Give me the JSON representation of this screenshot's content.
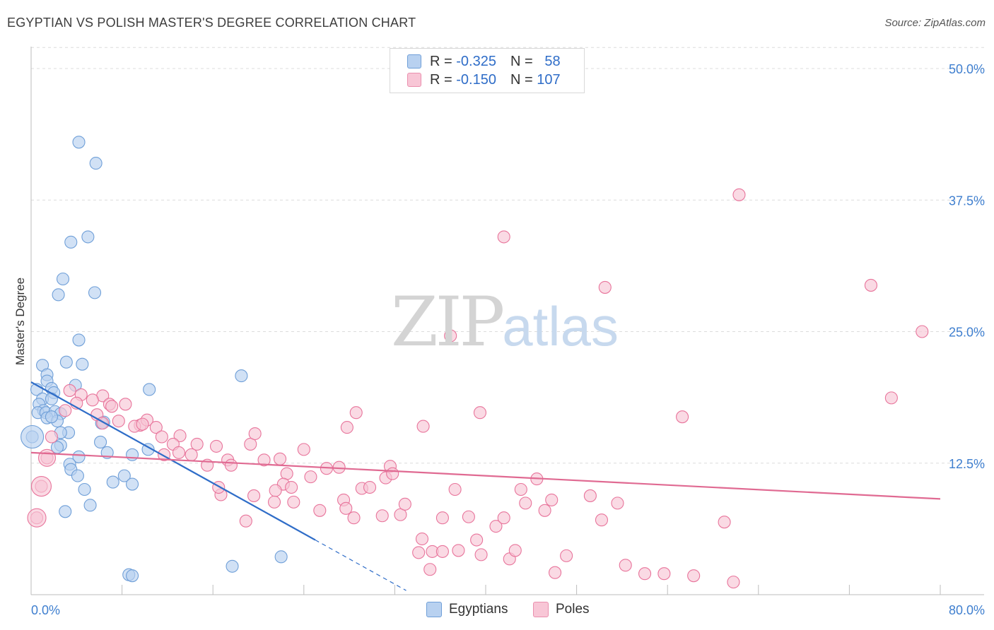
{
  "title": "EGYPTIAN VS POLISH MASTER'S DEGREE CORRELATION CHART",
  "source": "Source: ZipAtlas.com",
  "watermark": {
    "zip": "ZIP",
    "atlas": "atlas"
  },
  "legend": {
    "r_label": "R =",
    "n_label": "N =",
    "rows": [
      {
        "r": "-0.325",
        "n": "58",
        "fill": "#b8d1f0",
        "stroke": "#6f9fd8"
      },
      {
        "r": "-0.150",
        "n": "107",
        "fill": "#f8c6d6",
        "stroke": "#ea8fae"
      }
    ]
  },
  "bottom_legend": [
    {
      "label": "Egyptians",
      "fill": "#b8d1f0",
      "stroke": "#6f9fd8"
    },
    {
      "label": "Poles",
      "fill": "#f8c6d6",
      "stroke": "#ea8fae"
    }
  ],
  "chart_data": {
    "type": "scatter",
    "title": "EGYPTIAN VS POLISH MASTER'S DEGREE CORRELATION CHART",
    "ylabel": "Master's Degree",
    "xlabel": "",
    "xlim": [
      0,
      80
    ],
    "ylim": [
      0,
      52
    ],
    "x_tick_labels": [
      "0.0%",
      "80.0%"
    ],
    "y_ticks": [
      12.5,
      25.0,
      37.5,
      50.0
    ],
    "y_tick_labels": [
      "12.5%",
      "25.0%",
      "37.5%",
      "50.0%"
    ],
    "grid": true,
    "series": [
      {
        "name": "Egyptians",
        "color": "#6f9fd8",
        "fill": "#b8d1f0",
        "trend": {
          "x0": 0,
          "y0": 20.2,
          "x1": 25,
          "y1": 5.2,
          "dash_to_x": 33
        },
        "points": [
          [
            4.2,
            43.0
          ],
          [
            5.7,
            41.0
          ],
          [
            3.5,
            33.5
          ],
          [
            5.0,
            34.0
          ],
          [
            2.8,
            30.0
          ],
          [
            2.4,
            28.5
          ],
          [
            5.6,
            28.7
          ],
          [
            4.2,
            24.2
          ],
          [
            1.0,
            21.8
          ],
          [
            3.1,
            22.1
          ],
          [
            4.5,
            21.9
          ],
          [
            1.4,
            20.9
          ],
          [
            1.4,
            20.3
          ],
          [
            1.8,
            19.6
          ],
          [
            0.5,
            19.5
          ],
          [
            1.0,
            18.6
          ],
          [
            3.9,
            19.9
          ],
          [
            2.0,
            19.2
          ],
          [
            1.8,
            18.6
          ],
          [
            0.7,
            18.1
          ],
          [
            1.1,
            17.5
          ],
          [
            0.6,
            17.3
          ],
          [
            1.3,
            17.3
          ],
          [
            2.1,
            17.4
          ],
          [
            2.6,
            17.2
          ],
          [
            1.4,
            16.8
          ],
          [
            2.3,
            16.5
          ],
          [
            1.8,
            16.9
          ],
          [
            3.3,
            15.4
          ],
          [
            2.6,
            15.4
          ],
          [
            6.4,
            16.4
          ],
          [
            6.2,
            16.3
          ],
          [
            0.1,
            15.0
          ],
          [
            6.1,
            14.5
          ],
          [
            2.6,
            14.2
          ],
          [
            2.3,
            14.0
          ],
          [
            6.7,
            13.5
          ],
          [
            4.2,
            13.1
          ],
          [
            8.9,
            13.3
          ],
          [
            10.3,
            13.8
          ],
          [
            3.4,
            12.4
          ],
          [
            3.5,
            11.9
          ],
          [
            4.1,
            11.3
          ],
          [
            8.2,
            11.3
          ],
          [
            7.2,
            10.7
          ],
          [
            8.9,
            10.5
          ],
          [
            4.7,
            10.0
          ],
          [
            5.2,
            8.5
          ],
          [
            3.0,
            7.9
          ],
          [
            10.4,
            19.5
          ],
          [
            18.5,
            20.8
          ],
          [
            8.6,
            1.9
          ],
          [
            8.9,
            1.8
          ],
          [
            17.7,
            2.7
          ],
          [
            22.0,
            3.6
          ]
        ]
      },
      {
        "name": "Poles",
        "color": "#e8749b",
        "fill": "#f8c6d6",
        "trend": {
          "x0": 0,
          "y0": 13.5,
          "x1": 80,
          "y1": 9.1
        },
        "points": [
          [
            62.3,
            38.0
          ],
          [
            41.6,
            34.0
          ],
          [
            50.5,
            29.2
          ],
          [
            73.9,
            29.4
          ],
          [
            78.4,
            25.0
          ],
          [
            36.9,
            24.6
          ],
          [
            75.7,
            18.7
          ],
          [
            3.4,
            19.4
          ],
          [
            4.4,
            19.0
          ],
          [
            6.3,
            18.9
          ],
          [
            4.0,
            18.2
          ],
          [
            5.4,
            18.5
          ],
          [
            3.0,
            17.5
          ],
          [
            6.9,
            18.1
          ],
          [
            7.1,
            17.9
          ],
          [
            8.3,
            18.1
          ],
          [
            5.8,
            17.1
          ],
          [
            7.7,
            16.5
          ],
          [
            6.3,
            16.3
          ],
          [
            9.6,
            16.1
          ],
          [
            9.1,
            16.0
          ],
          [
            10.2,
            16.6
          ],
          [
            9.8,
            16.2
          ],
          [
            11.0,
            15.9
          ],
          [
            11.5,
            15.0
          ],
          [
            13.1,
            15.1
          ],
          [
            14.6,
            14.3
          ],
          [
            12.5,
            14.3
          ],
          [
            11.7,
            13.3
          ],
          [
            13.0,
            13.5
          ],
          [
            14.1,
            13.3
          ],
          [
            16.3,
            14.1
          ],
          [
            17.3,
            12.8
          ],
          [
            15.5,
            12.3
          ],
          [
            17.6,
            12.3
          ],
          [
            19.3,
            14.3
          ],
          [
            19.7,
            15.3
          ],
          [
            20.5,
            12.8
          ],
          [
            21.9,
            12.9
          ],
          [
            22.5,
            11.5
          ],
          [
            24.0,
            13.8
          ],
          [
            26.0,
            12.0
          ],
          [
            24.6,
            11.2
          ],
          [
            27.1,
            12.1
          ],
          [
            22.2,
            10.5
          ],
          [
            21.5,
            9.9
          ],
          [
            22.9,
            10.2
          ],
          [
            19.6,
            9.4
          ],
          [
            16.7,
            9.5
          ],
          [
            16.5,
            10.2
          ],
          [
            18.9,
            7.0
          ],
          [
            21.4,
            8.8
          ],
          [
            23.1,
            8.8
          ],
          [
            25.4,
            8.0
          ],
          [
            27.5,
            9.0
          ],
          [
            28.4,
            7.3
          ],
          [
            27.7,
            8.2
          ],
          [
            29.1,
            10.1
          ],
          [
            29.8,
            10.2
          ],
          [
            30.9,
            7.5
          ],
          [
            31.6,
            12.2
          ],
          [
            31.2,
            11.1
          ],
          [
            31.8,
            11.5
          ],
          [
            32.5,
            7.6
          ],
          [
            32.9,
            8.6
          ],
          [
            34.4,
            5.3
          ],
          [
            34.1,
            4.0
          ],
          [
            35.3,
            4.1
          ],
          [
            35.1,
            2.4
          ],
          [
            36.2,
            4.1
          ],
          [
            37.6,
            4.2
          ],
          [
            37.3,
            10.0
          ],
          [
            36.2,
            7.3
          ],
          [
            38.5,
            7.4
          ],
          [
            39.2,
            5.2
          ],
          [
            39.6,
            3.8
          ],
          [
            40.9,
            6.5
          ],
          [
            41.6,
            7.3
          ],
          [
            42.1,
            3.4
          ],
          [
            42.6,
            4.2
          ],
          [
            43.1,
            10.0
          ],
          [
            43.5,
            8.7
          ],
          [
            44.5,
            11.0
          ],
          [
            45.2,
            8.0
          ],
          [
            45.8,
            9.0
          ],
          [
            46.1,
            2.1
          ],
          [
            47.1,
            3.7
          ],
          [
            49.2,
            9.4
          ],
          [
            50.2,
            7.1
          ],
          [
            51.6,
            8.7
          ],
          [
            52.3,
            2.8
          ],
          [
            54.0,
            2.0
          ],
          [
            55.7,
            2.0
          ],
          [
            57.3,
            16.9
          ],
          [
            58.3,
            1.8
          ],
          [
            61.0,
            6.9
          ],
          [
            61.8,
            1.2
          ],
          [
            28.6,
            17.3
          ],
          [
            27.8,
            15.9
          ],
          [
            34.5,
            16.0
          ],
          [
            39.5,
            17.3
          ],
          [
            0.5,
            7.3
          ],
          [
            0.9,
            10.3
          ],
          [
            1.4,
            13.0
          ],
          [
            1.8,
            15.0
          ]
        ]
      }
    ]
  }
}
